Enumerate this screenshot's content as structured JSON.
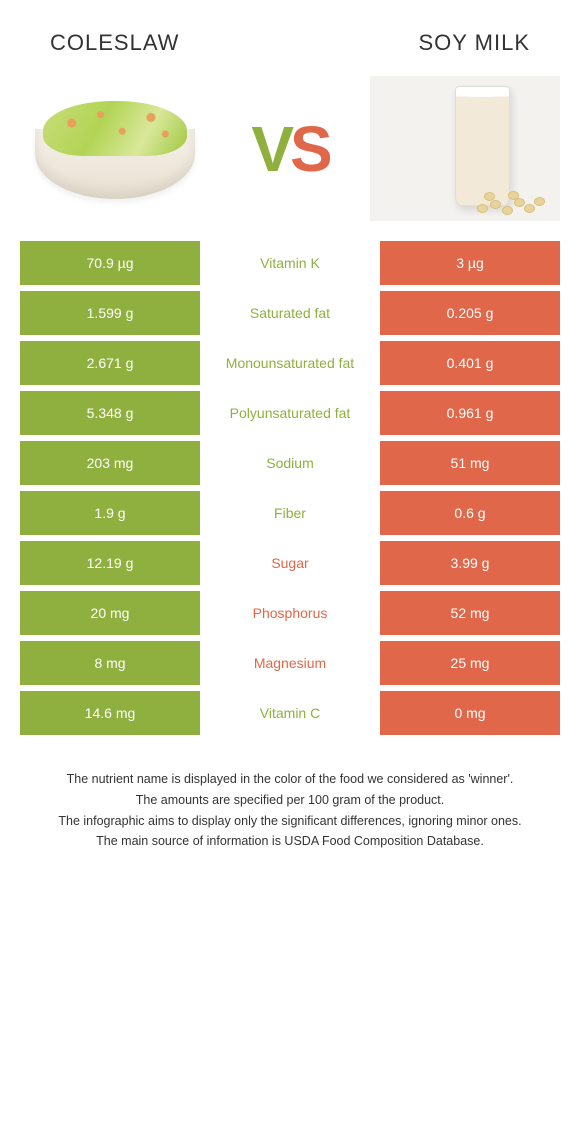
{
  "header": {
    "left_title": "COLESLAW",
    "right_title": "SOY MILK",
    "vs_v": "V",
    "vs_s": "S"
  },
  "colors": {
    "left": "#8fb03e",
    "right": "#e0674a",
    "text_dark": "#333333",
    "background": "#ffffff"
  },
  "rows": [
    {
      "left": "70.9 µg",
      "label": "Vitamin K",
      "right": "3 µg",
      "winner": "left"
    },
    {
      "left": "1.599 g",
      "label": "Saturated fat",
      "right": "0.205 g",
      "winner": "left"
    },
    {
      "left": "2.671 g",
      "label": "Monounsaturated fat",
      "right": "0.401 g",
      "winner": "left"
    },
    {
      "left": "5.348 g",
      "label": "Polyunsaturated fat",
      "right": "0.961 g",
      "winner": "left"
    },
    {
      "left": "203 mg",
      "label": "Sodium",
      "right": "51 mg",
      "winner": "left"
    },
    {
      "left": "1.9 g",
      "label": "Fiber",
      "right": "0.6 g",
      "winner": "left"
    },
    {
      "left": "12.19 g",
      "label": "Sugar",
      "right": "3.99 g",
      "winner": "right"
    },
    {
      "left": "20 mg",
      "label": "Phosphorus",
      "right": "52 mg",
      "winner": "right"
    },
    {
      "left": "8 mg",
      "label": "Magnesium",
      "right": "25 mg",
      "winner": "right"
    },
    {
      "left": "14.6 mg",
      "label": "Vitamin C",
      "right": "0 mg",
      "winner": "left"
    }
  ],
  "footer": {
    "line1": "The nutrient name is displayed in the color of the food we considered as 'winner'.",
    "line2": "The amounts are specified per 100 gram of the product.",
    "line3": "The infographic aims to display only the significant differences, ignoring minor ones.",
    "line4": "The main source of information is USDA Food Composition Database."
  },
  "style": {
    "title_fontsize": 22,
    "cell_fontsize": 14,
    "footer_fontsize": 12.5,
    "vs_fontsize": 64,
    "row_gap": 6,
    "cell_padding_v": 14
  }
}
